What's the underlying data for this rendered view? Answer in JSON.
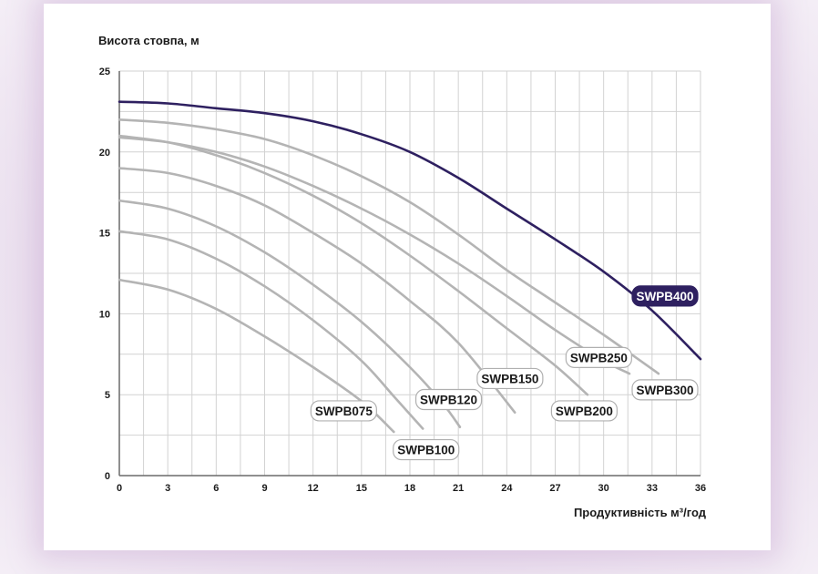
{
  "chart_data": {
    "type": "line",
    "title": "",
    "ylabel": "Висота стовпа, м",
    "xlabel": "Продуктивність м³/год",
    "xlim": [
      0,
      36
    ],
    "ylim": [
      0,
      25
    ],
    "x_ticks": [
      0,
      3,
      6,
      9,
      12,
      15,
      18,
      21,
      24,
      27,
      30,
      33,
      36
    ],
    "y_ticks": [
      0,
      5,
      10,
      15,
      20,
      25
    ],
    "grid": true,
    "colors": {
      "highlight_line": "#2e2060",
      "regular_line": "#b4b4b4",
      "grid": "#d2d2d2",
      "axis": "#6a6a6a",
      "label_border": "#b0b0b0",
      "label_text": "#1a1a1a",
      "highlight_label_bg": "#2e2060",
      "highlight_label_text": "#ffffff"
    },
    "series": [
      {
        "name": "SWPB075",
        "highlight": false,
        "points": [
          [
            0,
            12.1
          ],
          [
            3,
            11.5
          ],
          [
            6,
            10.3
          ],
          [
            9,
            8.6
          ],
          [
            12,
            6.7
          ],
          [
            15,
            4.6
          ],
          [
            17,
            2.7
          ]
        ]
      },
      {
        "name": "SWPB100",
        "highlight": false,
        "points": [
          [
            0,
            15.1
          ],
          [
            3,
            14.6
          ],
          [
            6,
            13.4
          ],
          [
            9,
            11.7
          ],
          [
            12,
            9.6
          ],
          [
            15,
            7.1
          ],
          [
            17,
            4.9
          ],
          [
            18.8,
            2.9
          ]
        ]
      },
      {
        "name": "SWPB120",
        "highlight": false,
        "points": [
          [
            0,
            17
          ],
          [
            3,
            16.5
          ],
          [
            6,
            15.4
          ],
          [
            9,
            13.8
          ],
          [
            12,
            11.8
          ],
          [
            15,
            9.5
          ],
          [
            18,
            6.7
          ],
          [
            20,
            4.5
          ],
          [
            21.1,
            3
          ]
        ]
      },
      {
        "name": "SWPB150",
        "highlight": false,
        "points": [
          [
            0,
            19
          ],
          [
            3,
            18.7
          ],
          [
            6,
            17.9
          ],
          [
            9,
            16.7
          ],
          [
            12,
            15
          ],
          [
            15,
            13.1
          ],
          [
            18,
            10.8
          ],
          [
            21,
            8.2
          ],
          [
            24.5,
            3.9
          ]
        ]
      },
      {
        "name": "SWPB200",
        "highlight": false,
        "points": [
          [
            0,
            21
          ],
          [
            3,
            20.6
          ],
          [
            6,
            19.8
          ],
          [
            9,
            18.7
          ],
          [
            12,
            17.3
          ],
          [
            15,
            15.6
          ],
          [
            18,
            13.6
          ],
          [
            21,
            11.4
          ],
          [
            24,
            9.1
          ],
          [
            27,
            6.8
          ],
          [
            29,
            5
          ]
        ]
      },
      {
        "name": "SWPB250",
        "highlight": false,
        "points": [
          [
            0,
            20.9
          ],
          [
            3,
            20.6
          ],
          [
            6,
            20
          ],
          [
            9,
            19.1
          ],
          [
            12,
            17.9
          ],
          [
            15,
            16.5
          ],
          [
            18,
            14.9
          ],
          [
            21,
            13.1
          ],
          [
            24,
            11.1
          ],
          [
            27,
            9
          ],
          [
            30,
            7.1
          ],
          [
            31.6,
            6.3
          ]
        ]
      },
      {
        "name": "SWPB300",
        "highlight": false,
        "points": [
          [
            0,
            22
          ],
          [
            3,
            21.8
          ],
          [
            6,
            21.4
          ],
          [
            9,
            20.8
          ],
          [
            12,
            19.8
          ],
          [
            15,
            18.5
          ],
          [
            18,
            16.9
          ],
          [
            21,
            14.9
          ],
          [
            24,
            12.7
          ],
          [
            27,
            10.7
          ],
          [
            30,
            8.7
          ],
          [
            33.4,
            6.3
          ]
        ]
      },
      {
        "name": "SWPB400",
        "highlight": true,
        "points": [
          [
            0,
            23.1
          ],
          [
            3,
            23
          ],
          [
            6,
            22.7
          ],
          [
            9,
            22.4
          ],
          [
            12,
            21.9
          ],
          [
            15,
            21.1
          ],
          [
            18,
            20
          ],
          [
            21,
            18.4
          ],
          [
            24,
            16.5
          ],
          [
            27,
            14.6
          ],
          [
            30,
            12.6
          ],
          [
            33,
            10.2
          ],
          [
            36,
            7.2
          ]
        ]
      }
    ],
    "labels": [
      {
        "series": "SWPB075",
        "text": "SWPB075",
        "x": 13.9,
        "y": 4.0
      },
      {
        "series": "SWPB100",
        "text": "SWPB100",
        "x": 19.0,
        "y": 1.6
      },
      {
        "series": "SWPB120",
        "text": "SWPB120",
        "x": 20.4,
        "y": 4.7
      },
      {
        "series": "SWPB150",
        "text": "SWPB150",
        "x": 24.2,
        "y": 6.0
      },
      {
        "series": "SWPB200",
        "text": "SWPB200",
        "x": 28.8,
        "y": 4.0
      },
      {
        "series": "SWPB250",
        "text": "SWPB250",
        "x": 29.7,
        "y": 7.3
      },
      {
        "series": "SWPB300",
        "text": "SWPB300",
        "x": 33.8,
        "y": 5.3
      },
      {
        "series": "SWPB400",
        "text": "SWPB400",
        "x": 33.8,
        "y": 11.1
      }
    ]
  }
}
